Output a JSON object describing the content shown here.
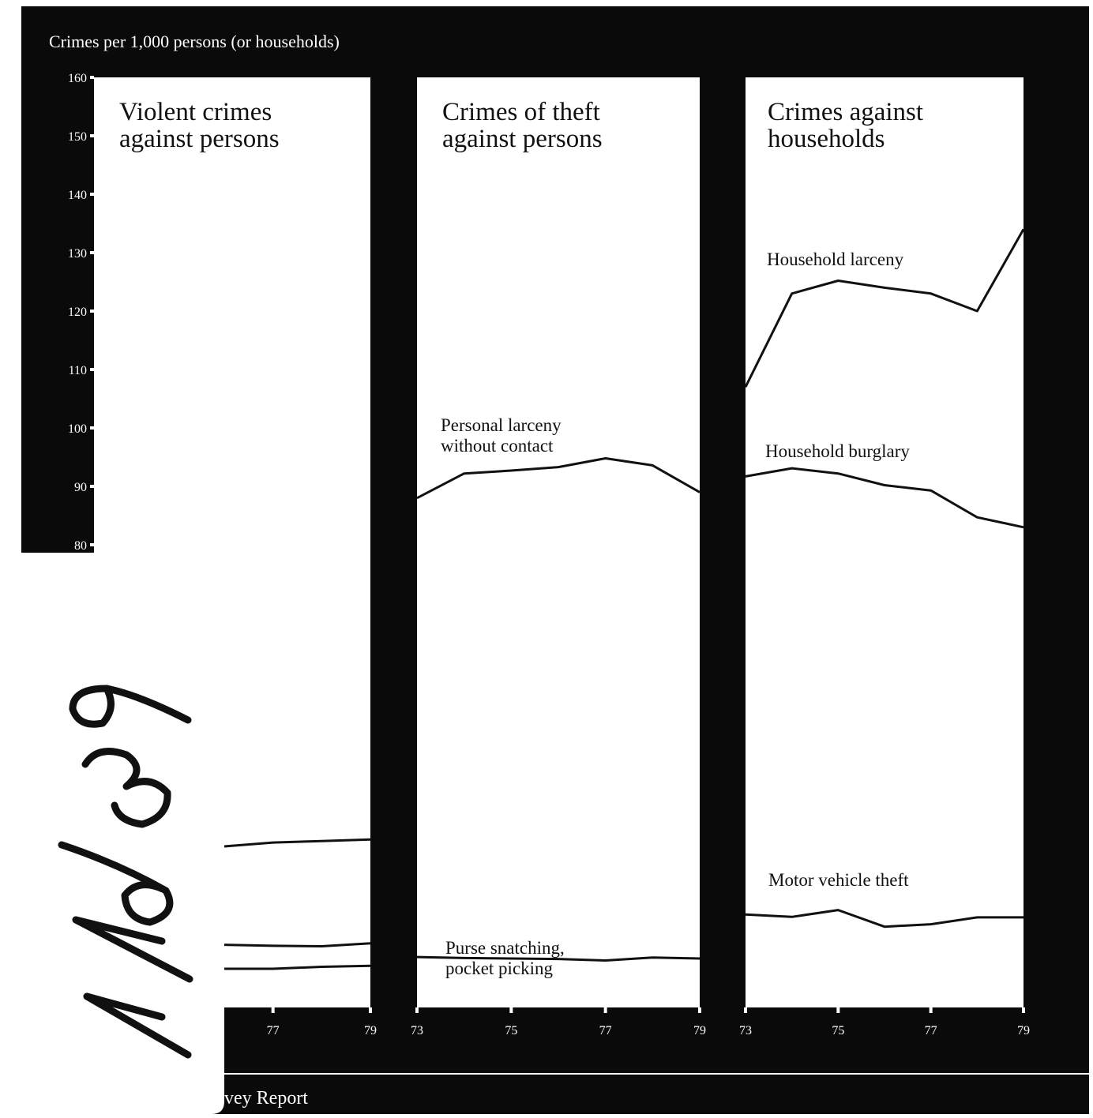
{
  "header": {
    "ylabel": "Crimes per 1,000 persons (or households)"
  },
  "footer": {
    "text": "vey Report"
  },
  "handwritten_note": "77639",
  "chart_data": [
    {
      "type": "line",
      "panel": "violent",
      "title_lines": [
        "Violent crimes",
        "against persons"
      ],
      "ylabel": "Crimes per 1,000 persons (or households)",
      "y_ticks": [
        80,
        90,
        100,
        110,
        120,
        130,
        140,
        150,
        160
      ],
      "x_ticks": [
        "77",
        "79"
      ],
      "x": [
        73,
        74,
        75,
        76,
        77,
        78,
        79
      ],
      "series": [
        {
          "name": "",
          "values": [
            null,
            null,
            32.8,
            32.9,
            33.7,
            34.0,
            34.3
          ]
        },
        {
          "name": "",
          "values": [
            null,
            null,
            12.9,
            12.8,
            12.6,
            12.5,
            13.1
          ]
        },
        {
          "name": "",
          "values": [
            null,
            null,
            8.0,
            7.9,
            7.9,
            8.3,
            8.5
          ]
        }
      ]
    },
    {
      "type": "line",
      "panel": "theft",
      "title_lines": [
        "Crimes of theft",
        "against persons"
      ],
      "x_ticks": [
        "73",
        "75",
        "77",
        "79"
      ],
      "x": [
        73,
        74,
        75,
        76,
        77,
        78,
        79
      ],
      "series": [
        {
          "name": "Personal larceny without contact",
          "label_lines": [
            "Personal larceny",
            "without contact"
          ],
          "values": [
            88.0,
            92.2,
            92.7,
            93.3,
            94.8,
            93.6,
            89.0
          ]
        },
        {
          "name": "Purse snatching, pocket picking",
          "label_lines": [
            "Purse snatching,",
            "pocket picking"
          ],
          "values": [
            10.3,
            10.1,
            10.0,
            9.9,
            9.6,
            10.2,
            10.0
          ]
        }
      ]
    },
    {
      "type": "line",
      "panel": "households",
      "title_lines": [
        "Crimes against",
        "households"
      ],
      "x_ticks": [
        "73",
        "75",
        "77",
        "79"
      ],
      "x": [
        73,
        74,
        75,
        76,
        77,
        78,
        79
      ],
      "series": [
        {
          "name": "Household larceny",
          "label_lines": [
            "Household larceny"
          ],
          "values": [
            107.0,
            123.0,
            125.2,
            124.0,
            123.0,
            120.0,
            134.0
          ]
        },
        {
          "name": "Household burglary",
          "label_lines": [
            "Household burglary"
          ],
          "values": [
            91.7,
            93.1,
            92.2,
            90.2,
            89.3,
            84.7,
            83.0
          ]
        },
        {
          "name": "Motor vehicle theft",
          "label_lines": [
            "Motor vehicle theft"
          ],
          "values": [
            19.0,
            18.5,
            19.9,
            16.5,
            17.0,
            18.4,
            18.4
          ]
        }
      ]
    }
  ]
}
